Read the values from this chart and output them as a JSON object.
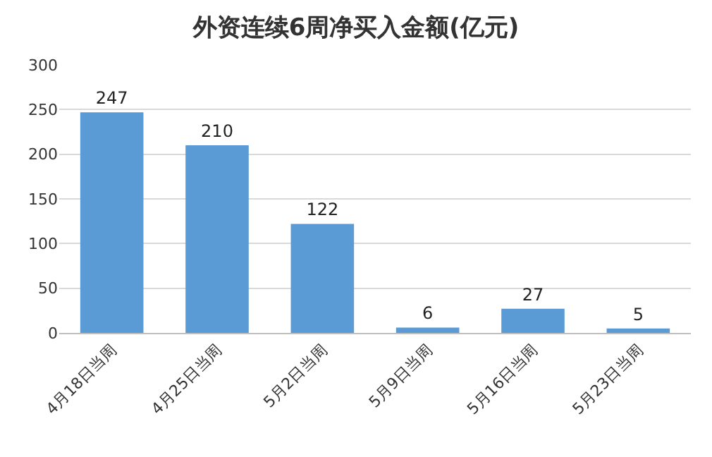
{
  "chart_data": {
    "type": "bar",
    "title": "外资连续6周净买入金额(亿元)",
    "categories": [
      "4月18日当周",
      "4月25日当周",
      "5月2日当周",
      "5月9日当周",
      "5月16日当周",
      "5月23日当周"
    ],
    "values": [
      247,
      210,
      122,
      6,
      27,
      5
    ],
    "color": "#5b9bd5",
    "ylim": [
      0,
      300
    ],
    "yticks": [
      0,
      50,
      100,
      150,
      200,
      250,
      300
    ],
    "grid": "y",
    "data_labels": true
  }
}
